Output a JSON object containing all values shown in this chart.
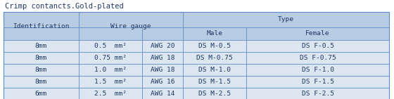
{
  "title": "Crimp contancts.Gold-plated",
  "title_fontsize": 7.5,
  "header_bg": "#b8cce4",
  "row_bg": "#dce6f1",
  "border_color": "#5b8cc8",
  "text_color": "#1f3864",
  "font_size": 6.8,
  "rows": [
    [
      "8mm",
      "0.5  mm²",
      "AWG 20",
      "DS M-0.5",
      "DS F-0.5"
    ],
    [
      "8mm",
      "0.75 mm²",
      "AWG 18",
      "DS M-0.75",
      "DS F-0.75"
    ],
    [
      "8mm",
      "1.0  mm²",
      "AWG 18",
      "DS M-1.0",
      "DS F-1.0"
    ],
    [
      "8mm",
      "1.5  mm²",
      "AWG 16",
      "DS M-1.5",
      "DS F-1.5"
    ],
    [
      "6mm",
      "2.5  mm²",
      "AWG 14",
      "DS M-2.5",
      "DS F-2.5"
    ]
  ],
  "col_bounds": [
    0.0,
    0.195,
    0.36,
    0.465,
    0.63,
    1.0
  ],
  "figsize": [
    5.6,
    1.41
  ],
  "dpi": 100
}
